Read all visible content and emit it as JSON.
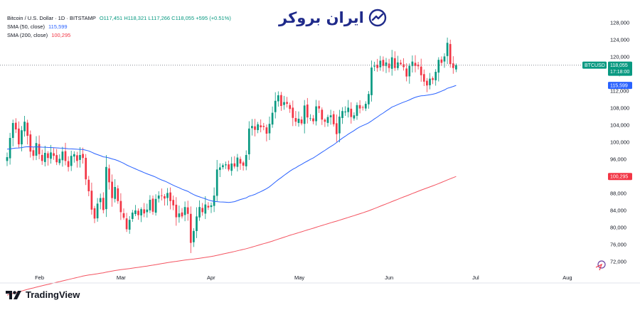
{
  "header": {
    "title": "Bitcoin / U.S. Dollar · 1D · BITSTAMP",
    "ohlc": "O117,451  H118,321  L117,266  C118,055  +595 (+0.51%)",
    "sma50_label": "SMA (50, close)",
    "sma50_value": "115,599",
    "sma200_label": "SMA (200, close)",
    "sma200_value": "100,295"
  },
  "logo": {
    "text": "ایران بروکر"
  },
  "footer": {
    "brand": "TradingView"
  },
  "colors": {
    "up": "#089981",
    "down": "#f23645",
    "sma50": "#2962ff",
    "sma200": "#f23645",
    "marker": "#e51e2a"
  },
  "chart_data": {
    "type": "line",
    "title": "Bitcoin / U.S. Dollar · 1D · BITSTAMP",
    "xlabel": "",
    "ylabel": "",
    "ylim": [
      70000,
      130000
    ],
    "yticks": [
      72000,
      76000,
      80000,
      84000,
      88000,
      92000,
      96000,
      100000,
      104000,
      108000,
      112000,
      116000,
      120000,
      124000,
      128000
    ],
    "ytick_labels": [
      "72,000",
      "76,000",
      "80,000",
      "84,000",
      "88,000",
      "92,000",
      "96,000",
      "100,000",
      "104,000",
      "108,000",
      "112,000",
      "116,000",
      "120,000",
      "124,000",
      "128,000"
    ],
    "xticks": [
      "Feb",
      "Mar",
      "Apr",
      "May",
      "Jun",
      "Jul",
      "Aug"
    ],
    "last_price": {
      "label": "BTCUSD",
      "value": 118055,
      "value_label": "118,055",
      "countdown": "17:18:00"
    },
    "series": [
      {
        "name": "BTCUSD",
        "kind": "candlestick",
        "close": [
          96500,
          101000,
          104500,
          103000,
          99500,
          102800,
          104800,
          101500,
          97800,
          96800,
          99800,
          97200,
          95600,
          97500,
          96300,
          97600,
          96800,
          95300,
          96100,
          97800,
          95600,
          94200,
          96800,
          97200,
          95600,
          97000,
          96300,
          91300,
          88500,
          84200,
          82100,
          85600,
          86900,
          84100,
          94200,
          90600,
          86900,
          89500,
          86200,
          83600,
          82300,
          79600,
          81800,
          83500,
          84000,
          82900,
          84300,
          83300,
          84200,
          86500,
          83700,
          86700,
          87500,
          87400,
          86800,
          88100,
          86200,
          85200,
          82400,
          83300,
          82600,
          84800,
          83200,
          76400,
          79200,
          82600,
          84800,
          83600,
          85400,
          84700,
          85200,
          87500,
          93600,
          94100,
          94600,
          94800,
          93600,
          95000,
          94300,
          96400,
          95000,
          94500,
          97000,
          103200,
          103800,
          102900,
          104200,
          103500,
          103600,
          102000,
          104300,
          106900,
          109700,
          111000,
          108500,
          109400,
          109000,
          107800,
          105700,
          104800,
          105500,
          104400,
          108600,
          105800,
          105600,
          104900,
          108400,
          107900,
          105300,
          104800,
          105900,
          106300,
          104200,
          101900,
          106000,
          107300,
          107200,
          108100,
          105900,
          106300,
          108700,
          107900,
          108200,
          109000,
          111300,
          117500,
          117900,
          117400,
          119100,
          117900,
          118700,
          117400,
          119900,
          117400,
          118700,
          118300,
          117600,
          115400,
          117900,
          118900,
          117900,
          117800,
          115700,
          114200,
          113300,
          114900,
          114600,
          116500,
          119300,
          118600,
          120100,
          123300,
          118300,
          117400,
          118055
        ]
      },
      {
        "name": "SMA (50, close)",
        "value_label": "115,599"
      },
      {
        "name": "SMA (200, close)",
        "value_label": "100,295"
      }
    ],
    "legend": "top-left",
    "grid": false
  }
}
